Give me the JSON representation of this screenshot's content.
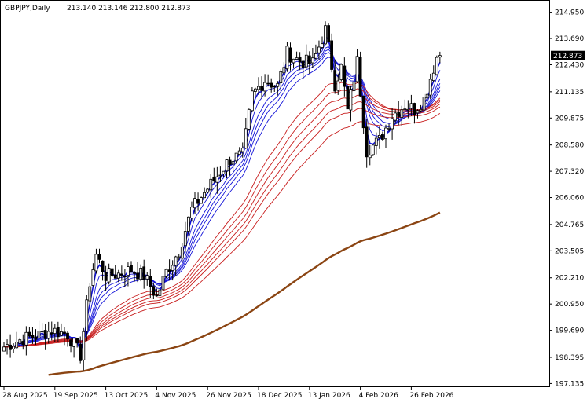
{
  "header": {
    "symbol_timeframe": "GBPJPY,Daily",
    "ohlc": "213.140 213.146 212.800 212.873"
  },
  "colors": {
    "background": "#ffffff",
    "candle": "#000000",
    "ema_fast": "#1414d8",
    "ema_slow": "#c81e1e",
    "ema_long": "#8b4513",
    "price_tag_bg": "#000000",
    "price_tag_text": "#ffffff"
  },
  "chart_data": {
    "type": "candlestick",
    "symbol": "GBPJPY",
    "timeframe": "Daily",
    "last_price": 212.873,
    "last_price_label": "212.873",
    "ylim": [
      197.0,
      215.5
    ],
    "yticks": [
      214.95,
      213.69,
      212.43,
      211.135,
      209.875,
      208.58,
      207.32,
      206.06,
      204.765,
      203.505,
      202.21,
      200.95,
      199.69,
      198.395,
      197.135
    ],
    "ytick_labels": [
      "214.950",
      "213.690",
      "212.430",
      "211.135",
      "209.875",
      "208.580",
      "207.320",
      "206.060",
      "204.765",
      "203.505",
      "202.210",
      "200.950",
      "199.690",
      "198.395",
      "197.135"
    ],
    "x_labels": [
      "28 Aug 2025",
      "19 Sep 2025",
      "13 Oct 2025",
      "4 Nov 2025",
      "26 Nov 2025",
      "18 Dec 2025",
      "13 Jan 2026",
      "4 Feb 2026",
      "26 Feb 2026"
    ],
    "x_label_index": [
      0,
      16,
      32,
      48,
      64,
      80,
      96,
      112,
      128
    ],
    "anchors": [
      [
        0,
        198.9
      ],
      [
        6,
        199.3
      ],
      [
        10,
        199.4
      ],
      [
        15,
        199.7
      ],
      [
        20,
        199.5
      ],
      [
        24,
        198.5
      ],
      [
        27,
        202.0
      ],
      [
        29,
        203.3
      ],
      [
        32,
        202.3
      ],
      [
        36,
        202.4
      ],
      [
        40,
        202.6
      ],
      [
        44,
        202.3
      ],
      [
        48,
        201.3
      ],
      [
        51,
        202.5
      ],
      [
        55,
        203.5
      ],
      [
        59,
        205.5
      ],
      [
        63,
        206.3
      ],
      [
        67,
        207.1
      ],
      [
        71,
        207.9
      ],
      [
        75,
        208.1
      ],
      [
        78,
        211.0
      ],
      [
        82,
        211.7
      ],
      [
        86,
        211.4
      ],
      [
        89,
        213.0
      ],
      [
        93,
        212.6
      ],
      [
        97,
        212.5
      ],
      [
        101,
        214.1
      ],
      [
        104,
        211.5
      ],
      [
        106,
        212.3
      ],
      [
        108,
        210.2
      ],
      [
        111,
        212.6
      ],
      [
        114,
        208.3
      ],
      [
        118,
        208.8
      ],
      [
        122,
        210.0
      ],
      [
        126,
        210.5
      ],
      [
        129,
        210.3
      ],
      [
        132,
        210.8
      ],
      [
        134,
        211.8
      ],
      [
        136,
        212.8
      ],
      [
        137,
        212.873
      ]
    ],
    "series": [
      {
        "name": "",
        "kind": "ema",
        "group": "fast",
        "period": 3
      },
      {
        "name": "",
        "kind": "ema",
        "group": "fast",
        "period": 5
      },
      {
        "name": "",
        "kind": "ema",
        "group": "fast",
        "period": 8
      },
      {
        "name": "",
        "kind": "ema",
        "group": "fast",
        "period": 10
      },
      {
        "name": "",
        "kind": "ema",
        "group": "fast",
        "period": 12
      },
      {
        "name": "",
        "kind": "ema",
        "group": "fast",
        "period": 15
      },
      {
        "name": "",
        "kind": "ema",
        "group": "slow",
        "period": 30
      },
      {
        "name": "",
        "kind": "ema",
        "group": "slow",
        "period": 35
      },
      {
        "name": "",
        "kind": "ema",
        "group": "slow",
        "period": 40
      },
      {
        "name": "",
        "kind": "ema",
        "group": "slow",
        "period": 45
      },
      {
        "name": "",
        "kind": "ema",
        "group": "slow",
        "period": 50
      },
      {
        "name": "",
        "kind": "ema",
        "group": "slow",
        "period": 60
      },
      {
        "name": "",
        "kind": "ema",
        "group": "long",
        "period": 200
      }
    ],
    "grid": false,
    "legend": "none"
  }
}
